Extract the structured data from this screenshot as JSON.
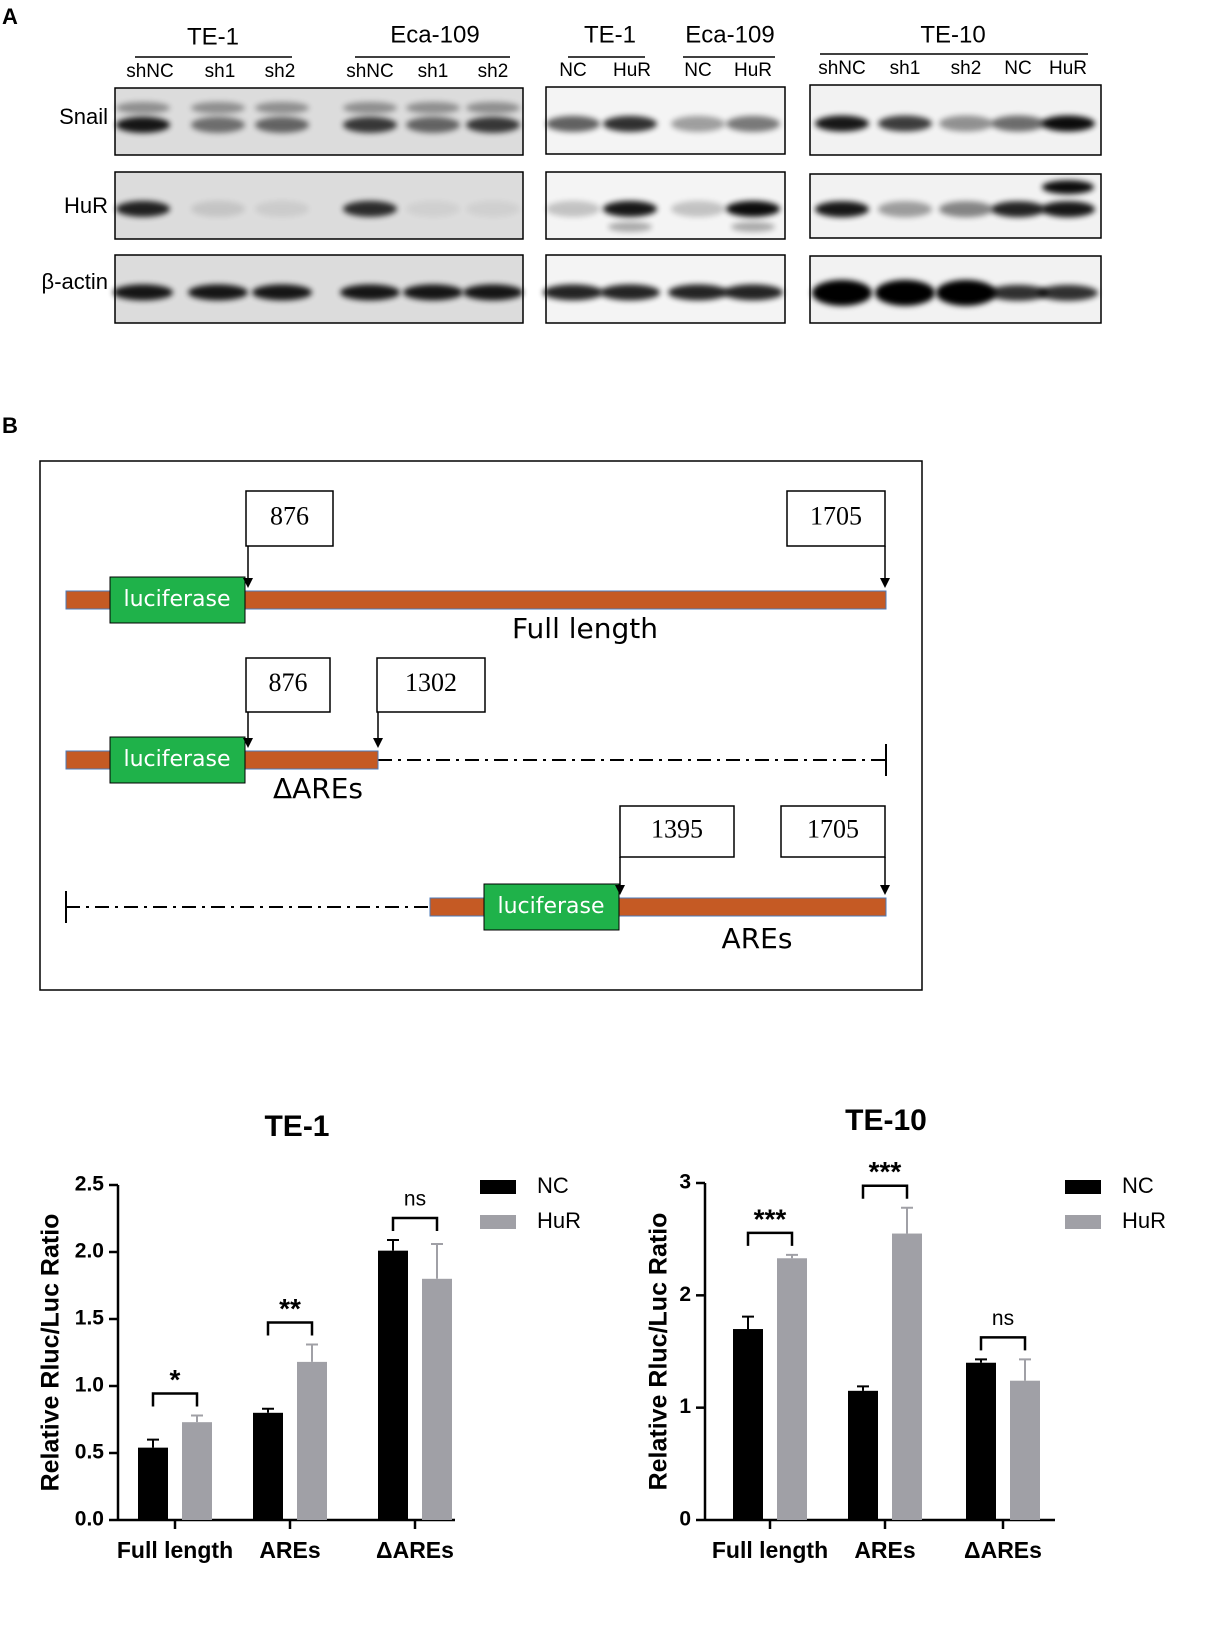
{
  "panel_labels": [
    "A",
    "B"
  ],
  "blot": {
    "groups": [
      {
        "title": "TE-1",
        "lanes": [
          "shNC",
          "sh1",
          "sh2"
        ]
      },
      {
        "title": "Eca-109",
        "lanes": [
          "shNC",
          "sh1",
          "sh2"
        ]
      },
      {
        "title": "TE-1",
        "lanes": [
          "NC",
          "HuR"
        ]
      },
      {
        "title": "Eca-109",
        "lanes": [
          "NC",
          "HuR"
        ]
      },
      {
        "title": "TE-10",
        "lanes": [
          "shNC",
          "sh1",
          "sh2",
          "NC",
          "HuR"
        ]
      }
    ],
    "rows": [
      "Snail",
      "HuR",
      "β-actin"
    ]
  },
  "diagram": {
    "constructs": [
      {
        "name": "Full length",
        "insert": "luciferase",
        "sites": [
          876,
          1705
        ]
      },
      {
        "name": "ΔAREs",
        "insert": "luciferase",
        "sites": [
          876,
          1302
        ]
      },
      {
        "name": "AREs",
        "insert": "luciferase",
        "sites": [
          1395,
          1705
        ]
      }
    ]
  },
  "chart_data": [
    {
      "type": "bar",
      "title": "TE-1",
      "y_label": "Relative Rluc/Luc Ratio",
      "categories": [
        "Full length",
        "AREs",
        "ΔAREs"
      ],
      "series": [
        {
          "name": "NC",
          "color": "#000000",
          "values": [
            0.54,
            0.8,
            2.01
          ],
          "errors": [
            0.06,
            0.03,
            0.08
          ]
        },
        {
          "name": "HuR",
          "color": "#a0a0a6",
          "values": [
            0.73,
            1.18,
            1.8
          ],
          "errors": [
            0.05,
            0.13,
            0.26
          ]
        }
      ],
      "significance": [
        "*",
        "**",
        "ns"
      ],
      "ylim": [
        0,
        2.5
      ],
      "yticks": [
        {
          "value": 0,
          "label": "0.0"
        },
        0.5,
        {
          "value": 1,
          "label": "1.0"
        },
        1.5,
        {
          "value": 2,
          "label": "2.0"
        },
        2.5
      ]
    },
    {
      "type": "bar",
      "title": "TE-10",
      "y_label": "Relative Rluc/Luc Ratio",
      "categories": [
        "Full length",
        "AREs",
        "ΔAREs"
      ],
      "series": [
        {
          "name": "NC",
          "color": "#000000",
          "values": [
            1.7,
            1.15,
            1.4
          ],
          "errors": [
            0.11,
            0.04,
            0.03
          ]
        },
        {
          "name": "HuR",
          "color": "#a0a0a6",
          "values": [
            2.33,
            2.55,
            1.24
          ],
          "errors": [
            0.03,
            0.23,
            0.19
          ]
        }
      ],
      "significance": [
        "***",
        "***",
        "ns"
      ],
      "ylim": [
        0,
        3
      ],
      "yticks": [
        0,
        1,
        2,
        3
      ]
    }
  ]
}
